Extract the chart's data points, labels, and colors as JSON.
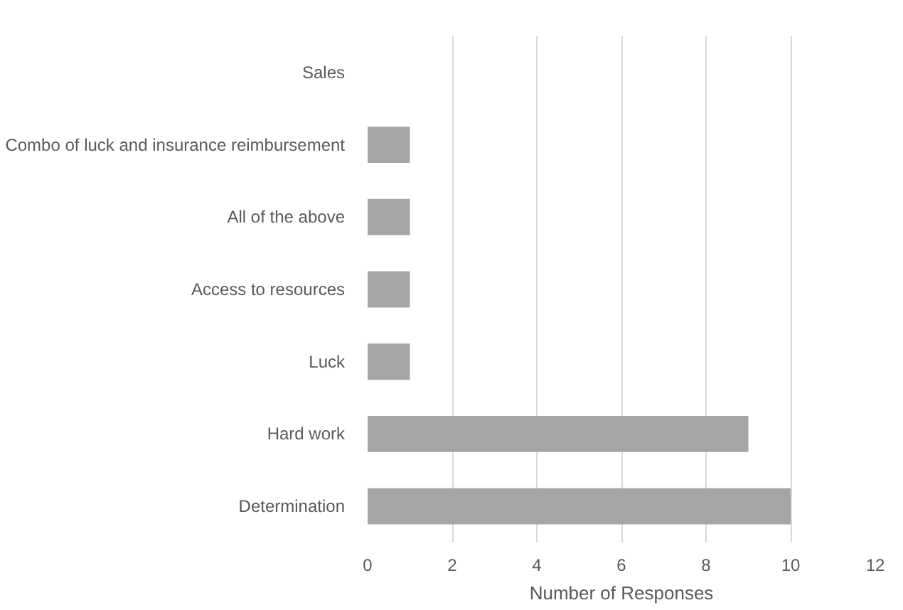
{
  "chart_data": {
    "type": "bar",
    "orientation": "horizontal",
    "categories": [
      "Sales",
      "Combo of luck and insurance reimbursement",
      "All of the above",
      "Access to resources",
      "Luck",
      "Hard work",
      "Determination"
    ],
    "values": [
      0,
      1,
      1,
      1,
      1,
      9,
      10
    ],
    "color": "#a5a5a5",
    "xlabel": "Number of Responses",
    "xlim": [
      0,
      12
    ],
    "xticks": [
      0,
      2,
      4,
      6,
      8,
      10,
      12
    ],
    "grid": "x"
  }
}
